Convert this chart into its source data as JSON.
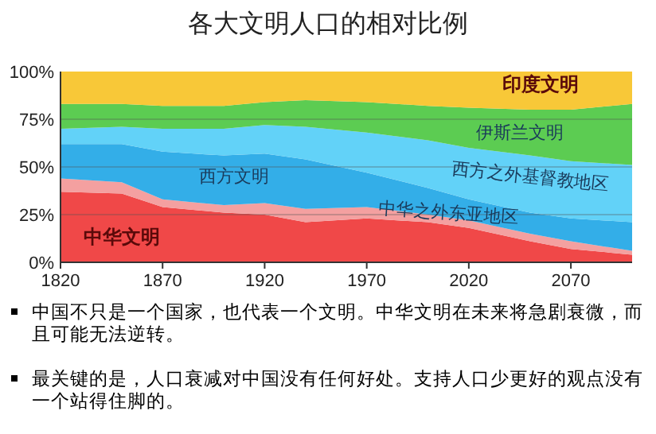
{
  "chart_data": {
    "type": "area",
    "stacked": true,
    "title": "各大文明人口的相对比例",
    "x": [
      1820,
      1850,
      1870,
      1900,
      1920,
      1940,
      1970,
      2000,
      2020,
      2050,
      2070,
      2100
    ],
    "xlim": [
      1820,
      2100
    ],
    "xticks": [
      1820,
      1870,
      1920,
      1970,
      2020,
      2070
    ],
    "ylim": [
      0,
      100
    ],
    "yticks": [
      {
        "value": 0,
        "label": "0%"
      },
      {
        "value": 25,
        "label": "25%"
      },
      {
        "value": 50,
        "label": "50%"
      },
      {
        "value": 75,
        "label": "75%"
      },
      {
        "value": 100,
        "label": "100%"
      }
    ],
    "grid": "y",
    "legend": false,
    "series": [
      {
        "name": "中华文明",
        "color": "#f04848",
        "values": [
          37,
          36,
          29,
          26,
          25,
          21,
          23,
          21,
          18,
          11,
          7,
          4
        ]
      },
      {
        "name": "中华之外东亚地区",
        "color": "#f4a0a0",
        "values": [
          7,
          6,
          4,
          4,
          6,
          7,
          6,
          4,
          4,
          4,
          4,
          2
        ]
      },
      {
        "name": "西方文明",
        "color": "#33aee8",
        "values": [
          18,
          20,
          25,
          26,
          26,
          26,
          18,
          14,
          11,
          11,
          12,
          15
        ]
      },
      {
        "name": "西方之外基督教地区",
        "color": "#62d2f8",
        "values": [
          8,
          9,
          12,
          14,
          15,
          17,
          21,
          25,
          27,
          30,
          30,
          30
        ]
      },
      {
        "name": "伊斯兰文明",
        "color": "#5ccc52",
        "values": [
          13,
          12,
          12,
          12,
          12,
          14,
          16,
          18,
          21,
          24,
          27,
          32
        ]
      },
      {
        "name": "印度文明",
        "color": "#f8c838",
        "values": [
          17,
          17,
          18,
          18,
          16,
          15,
          16,
          18,
          19,
          20,
          20,
          17
        ]
      }
    ],
    "annotations": [
      "中国不只是一个国家，也代表一个文明。中华文明在未来将急剧衰微，而且可能无法逆转。",
      "最关键的是，人口衰减对中国没有任何好处。支持人口少更好的观点没有一个站得住脚的。"
    ]
  }
}
